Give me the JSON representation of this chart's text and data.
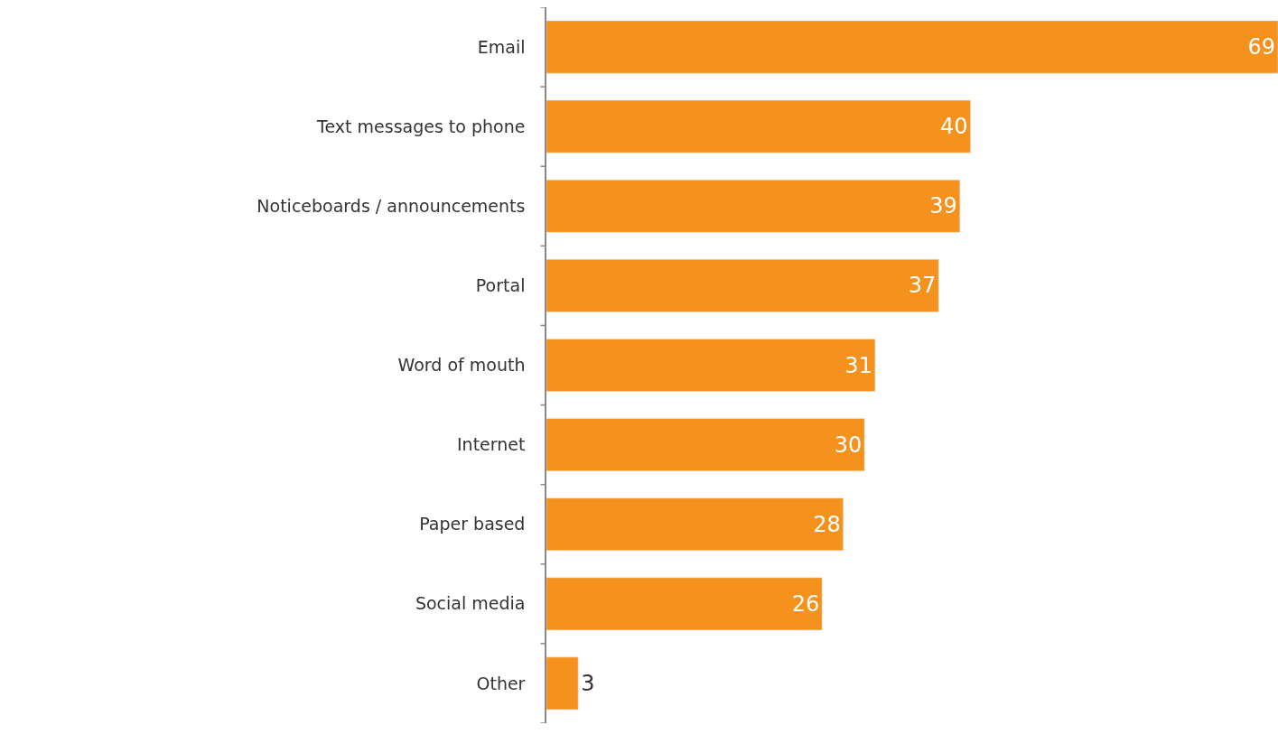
{
  "chart_data": {
    "type": "bar",
    "orientation": "horizontal",
    "data_labels": true,
    "categories": [
      "Email",
      "Text messages to phone",
      "Noticeboards / announcements",
      "Portal",
      "Word of mouth",
      "Internet",
      "Paper based",
      "Social media",
      "Other"
    ],
    "values": [
      69,
      40,
      39,
      37,
      31,
      30,
      28,
      26,
      3
    ],
    "color": "#f5921e"
  }
}
